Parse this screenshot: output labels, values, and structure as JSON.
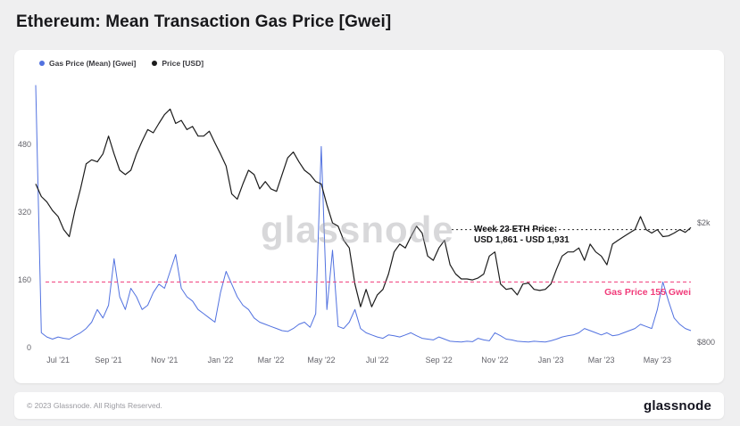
{
  "page": {
    "title": "Ethereum: Mean Transaction Gas Price [Gwei]"
  },
  "legend": [
    {
      "label": "Gas Price (Mean) [Gwei]",
      "color": "#5272e0"
    },
    {
      "label": "Price [USD]",
      "color": "#1c1c1c"
    }
  ],
  "watermark": "glassnode",
  "annotations": {
    "eth_price_line1": "Week 23 ETH Price:",
    "eth_price_line2": "USD 1,861 - USD 1,931",
    "gas_price_label": "Gas Price 155 Gwei",
    "gas_price_color": "#f13b7a"
  },
  "footer": {
    "copyright": "© 2023 Glassnode. All Rights Reserved.",
    "brand": "glassnode"
  },
  "chart_data": {
    "type": "line",
    "title": "Ethereum: Mean Transaction Gas Price [Gwei]",
    "left_axis": {
      "label": "Gas Price (Mean) [Gwei]",
      "min": 0,
      "max": 640,
      "ticks": [
        0,
        160,
        320,
        480
      ]
    },
    "right_axis": {
      "label": "Price [USD]",
      "scale": "log",
      "min": 767,
      "max": 6160,
      "ticks": [
        {
          "label": "$2k",
          "value": 2000
        },
        {
          "label": "$800",
          "value": 800
        }
      ]
    },
    "x_ticks": [
      {
        "label": "Jul '21",
        "i": 4
      },
      {
        "label": "Sep '21",
        "i": 13
      },
      {
        "label": "Nov '21",
        "i": 23
      },
      {
        "label": "Jan '22",
        "i": 33
      },
      {
        "label": "Mar '22",
        "i": 42
      },
      {
        "label": "May '22",
        "i": 51
      },
      {
        "label": "Jul '22",
        "i": 61
      },
      {
        "label": "Sep '22",
        "i": 72
      },
      {
        "label": "Nov '22",
        "i": 82
      },
      {
        "label": "Jan '23",
        "i": 92
      },
      {
        "label": "Mar '23",
        "i": 101
      },
      {
        "label": "May '23",
        "i": 111
      }
    ],
    "series": [
      {
        "name": "Gas Price (Mean) [Gwei]",
        "axis": "left",
        "color": "#5272e0",
        "width": 1,
        "values": [
          620,
          35,
          25,
          20,
          25,
          22,
          20,
          28,
          35,
          45,
          60,
          90,
          70,
          100,
          210,
          120,
          90,
          140,
          120,
          90,
          100,
          130,
          150,
          140,
          180,
          220,
          140,
          120,
          110,
          90,
          80,
          70,
          60,
          130,
          180,
          150,
          120,
          100,
          90,
          70,
          60,
          55,
          50,
          45,
          40,
          38,
          45,
          55,
          60,
          48,
          80,
          475,
          90,
          230,
          50,
          45,
          60,
          90,
          45,
          35,
          30,
          25,
          22,
          30,
          28,
          25,
          30,
          35,
          28,
          22,
          20,
          18,
          25,
          20,
          15,
          14,
          13,
          15,
          14,
          22,
          18,
          16,
          35,
          28,
          20,
          18,
          15,
          14,
          13,
          15,
          14,
          13,
          16,
          20,
          25,
          28,
          30,
          35,
          45,
          40,
          35,
          30,
          35,
          28,
          30,
          35,
          40,
          45,
          55,
          50,
          45,
          90,
          155,
          110,
          70,
          55,
          45,
          40
        ]
      },
      {
        "name": "Price [USD]",
        "axis": "right",
        "color": "#1c1c1c",
        "width": 1.2,
        "values": [
          2700,
          2450,
          2350,
          2200,
          2100,
          1900,
          1800,
          2200,
          2600,
          3150,
          3250,
          3200,
          3400,
          3900,
          3400,
          3000,
          2900,
          3000,
          3400,
          3750,
          4100,
          4000,
          4300,
          4600,
          4800,
          4300,
          4400,
          4100,
          4200,
          3900,
          3900,
          4050,
          3700,
          3400,
          3100,
          2500,
          2400,
          2700,
          3000,
          2900,
          2600,
          2750,
          2600,
          2550,
          2900,
          3300,
          3450,
          3200,
          3000,
          2900,
          2750,
          2700,
          2300,
          2000,
          1950,
          1750,
          1650,
          1250,
          1050,
          1200,
          1050,
          1150,
          1200,
          1350,
          1600,
          1700,
          1650,
          1800,
          1950,
          1850,
          1550,
          1500,
          1650,
          1750,
          1450,
          1350,
          1300,
          1300,
          1290,
          1310,
          1350,
          1550,
          1600,
          1250,
          1200,
          1210,
          1150,
          1250,
          1260,
          1200,
          1190,
          1200,
          1250,
          1400,
          1550,
          1600,
          1600,
          1650,
          1500,
          1700,
          1600,
          1550,
          1450,
          1700,
          1750,
          1800,
          1850,
          1900,
          2100,
          1900,
          1850,
          1900,
          1800,
          1810,
          1850,
          1900,
          1861,
          1931
        ]
      }
    ],
    "annotation_lines": [
      {
        "axis": "right",
        "value": 1900,
        "from_frac": 0.635,
        "to_frac": 1.0,
        "color": "#222222",
        "dash": "2,3"
      },
      {
        "axis": "left",
        "value": 155,
        "from_frac": 0.015,
        "to_frac": 1.0,
        "color": "#f13b7a",
        "dash": "4,3"
      }
    ]
  }
}
